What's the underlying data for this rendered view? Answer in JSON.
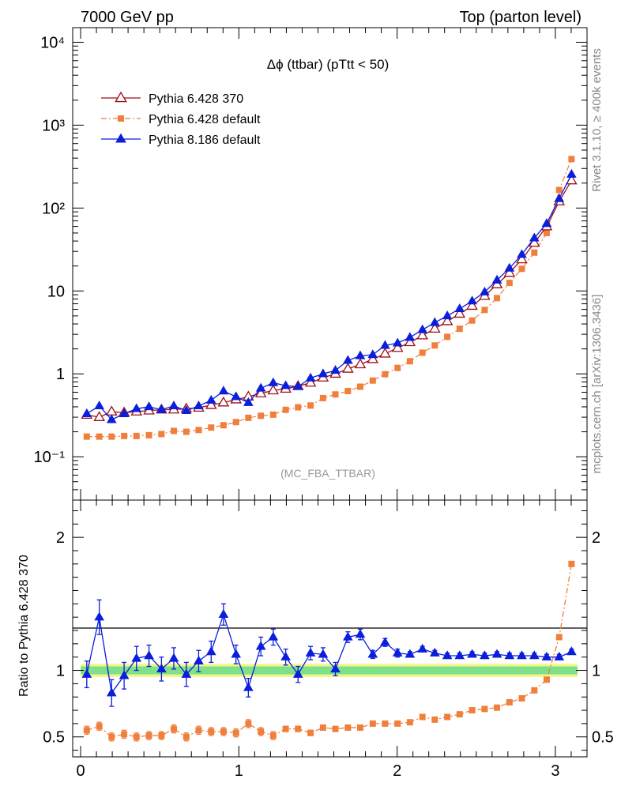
{
  "header": {
    "left_title": "7000 GeV pp",
    "right_title": "Top (parton level)"
  },
  "side": {
    "rivet_label": "Rivet 3.1.10, ≥ 400k events",
    "mcplots_label": "mcplots.cern.ch [arXiv:1306.3436]"
  },
  "chart_data": [
    {
      "type": "line",
      "title": "Δϕ (ttbar) (pTtt < 50)",
      "analysis_label": "(MC_FBA_TTBAR)",
      "xlabel": "",
      "ylabel": "",
      "xlim": [
        -0.05,
        3.2
      ],
      "ylim": [
        0.03,
        15000
      ],
      "log_y": true,
      "y_tick_labels": [
        "10⁻¹",
        "1",
        "10",
        "10²",
        "10³",
        "10⁴"
      ],
      "legend_position": "top-left",
      "x": [
        0.039,
        0.118,
        0.196,
        0.275,
        0.353,
        0.432,
        0.511,
        0.589,
        0.668,
        0.746,
        0.825,
        0.903,
        0.982,
        1.06,
        1.139,
        1.217,
        1.296,
        1.374,
        1.453,
        1.532,
        1.61,
        1.689,
        1.767,
        1.846,
        1.924,
        2.003,
        2.081,
        2.16,
        2.238,
        2.317,
        2.395,
        2.474,
        2.553,
        2.631,
        2.71,
        2.788,
        2.867,
        2.945,
        3.024,
        3.102
      ],
      "series": [
        {
          "name": "Pythia 6.428 370",
          "color": "#9b0e1a",
          "marker": "open-triangle",
          "values": [
            0.32,
            0.3,
            0.35,
            0.34,
            0.35,
            0.36,
            0.37,
            0.37,
            0.38,
            0.39,
            0.42,
            0.45,
            0.49,
            0.53,
            0.58,
            0.63,
            0.66,
            0.71,
            0.78,
            0.9,
            1.0,
            1.15,
            1.3,
            1.5,
            1.75,
            2.05,
            2.4,
            2.9,
            3.5,
            4.3,
            5.3,
            6.6,
            8.7,
            12.0,
            16.5,
            24.0,
            38.0,
            60.0,
            120.0,
            215.0
          ]
        },
        {
          "name": "Pythia 6.428 default",
          "color": "#f07f3c",
          "marker": "filled-square",
          "line": "dash-dot",
          "values": [
            0.175,
            0.175,
            0.175,
            0.178,
            0.178,
            0.182,
            0.188,
            0.205,
            0.2,
            0.21,
            0.225,
            0.24,
            0.262,
            0.295,
            0.312,
            0.322,
            0.368,
            0.395,
            0.415,
            0.51,
            0.565,
            0.62,
            0.7,
            0.83,
            0.99,
            1.18,
            1.42,
            1.8,
            2.2,
            2.8,
            3.5,
            4.4,
            5.9,
            8.2,
            12.5,
            18.5,
            29.0,
            50.0,
            165.0,
            390.0
          ]
        },
        {
          "name": "Pythia 8.186 default",
          "color": "#0a1edc",
          "marker": "filled-triangle",
          "values": [
            0.33,
            0.41,
            0.28,
            0.33,
            0.38,
            0.4,
            0.37,
            0.41,
            0.36,
            0.41,
            0.48,
            0.62,
            0.53,
            0.45,
            0.67,
            0.78,
            0.72,
            0.7,
            0.89,
            1.0,
            1.1,
            1.45,
            1.65,
            1.7,
            2.2,
            2.35,
            2.75,
            3.4,
            4.15,
            5.0,
            6.1,
            7.55,
            9.7,
            13.5,
            18.8,
            27.5,
            43.5,
            65.0,
            130.0,
            255.0
          ]
        }
      ]
    },
    {
      "type": "line",
      "title": "",
      "xlabel": "",
      "ylabel": "Ratio to Pythia 6.428 370",
      "xlim": [
        -0.05,
        3.2
      ],
      "ylim": [
        0.35,
        2.28
      ],
      "x_tick_labels": [
        "0",
        "1",
        "2",
        "3"
      ],
      "y_tick_labels": [
        "0.5",
        "1",
        "2"
      ],
      "reference_line": 1.0,
      "uncertainty_band": {
        "inner_halfwidth": 0.03,
        "outer_halfwidth": 0.05
      },
      "x": [
        0.039,
        0.118,
        0.196,
        0.275,
        0.353,
        0.432,
        0.511,
        0.589,
        0.668,
        0.746,
        0.825,
        0.903,
        0.982,
        1.06,
        1.139,
        1.217,
        1.296,
        1.374,
        1.453,
        1.532,
        1.61,
        1.689,
        1.767,
        1.846,
        1.924,
        2.003,
        2.081,
        2.16,
        2.238,
        2.317,
        2.395,
        2.474,
        2.553,
        2.631,
        2.71,
        2.788,
        2.867,
        2.945,
        3.024,
        3.102
      ],
      "series": [
        {
          "name": "Pythia 6.428 default",
          "color": "#f07f3c",
          "values": [
            0.55,
            0.58,
            0.5,
            0.52,
            0.5,
            0.51,
            0.51,
            0.56,
            0.5,
            0.55,
            0.54,
            0.54,
            0.53,
            0.6,
            0.54,
            0.51,
            0.56,
            0.56,
            0.53,
            0.57,
            0.56,
            0.57,
            0.57,
            0.6,
            0.6,
            0.6,
            0.61,
            0.65,
            0.63,
            0.65,
            0.67,
            0.7,
            0.71,
            0.72,
            0.76,
            0.79,
            0.85,
            0.93,
            1.25,
            1.8
          ],
          "errors": [
            0.03,
            0.03,
            0.03,
            0.03,
            0.03,
            0.03,
            0.03,
            0.03,
            0.03,
            0.03,
            0.03,
            0.03,
            0.03,
            0.03,
            0.03,
            0.03,
            0.02,
            0.02,
            0.02,
            0.01,
            0.01,
            0.01,
            0.01,
            0.01,
            0.01,
            0.01,
            0.01,
            0.01,
            0.01,
            0.01,
            0.01,
            0.01,
            0.01,
            0.01,
            0.01,
            0.01,
            0.01,
            0.01,
            0.01,
            0.01
          ]
        },
        {
          "name": "Pythia 8.186 default",
          "color": "#0a1edc",
          "values": [
            0.97,
            1.4,
            0.83,
            0.96,
            1.09,
            1.11,
            1.01,
            1.09,
            0.97,
            1.07,
            1.14,
            1.42,
            1.12,
            0.87,
            1.18,
            1.25,
            1.1,
            0.97,
            1.13,
            1.12,
            1.01,
            1.25,
            1.27,
            1.12,
            1.21,
            1.13,
            1.12,
            1.16,
            1.13,
            1.11,
            1.11,
            1.12,
            1.11,
            1.12,
            1.11,
            1.11,
            1.11,
            1.1,
            1.1,
            1.14
          ],
          "errors": [
            0.1,
            0.13,
            0.1,
            0.1,
            0.09,
            0.08,
            0.09,
            0.08,
            0.09,
            0.08,
            0.08,
            0.08,
            0.07,
            0.07,
            0.07,
            0.06,
            0.06,
            0.06,
            0.05,
            0.05,
            0.05,
            0.04,
            0.04,
            0.03,
            0.03,
            0.03,
            0.02,
            0.02,
            0.02,
            0.02,
            0.02,
            0.02,
            0.02,
            0.02,
            0.02,
            0.02,
            0.02,
            0.02,
            0.02,
            0.02
          ]
        }
      ]
    }
  ]
}
